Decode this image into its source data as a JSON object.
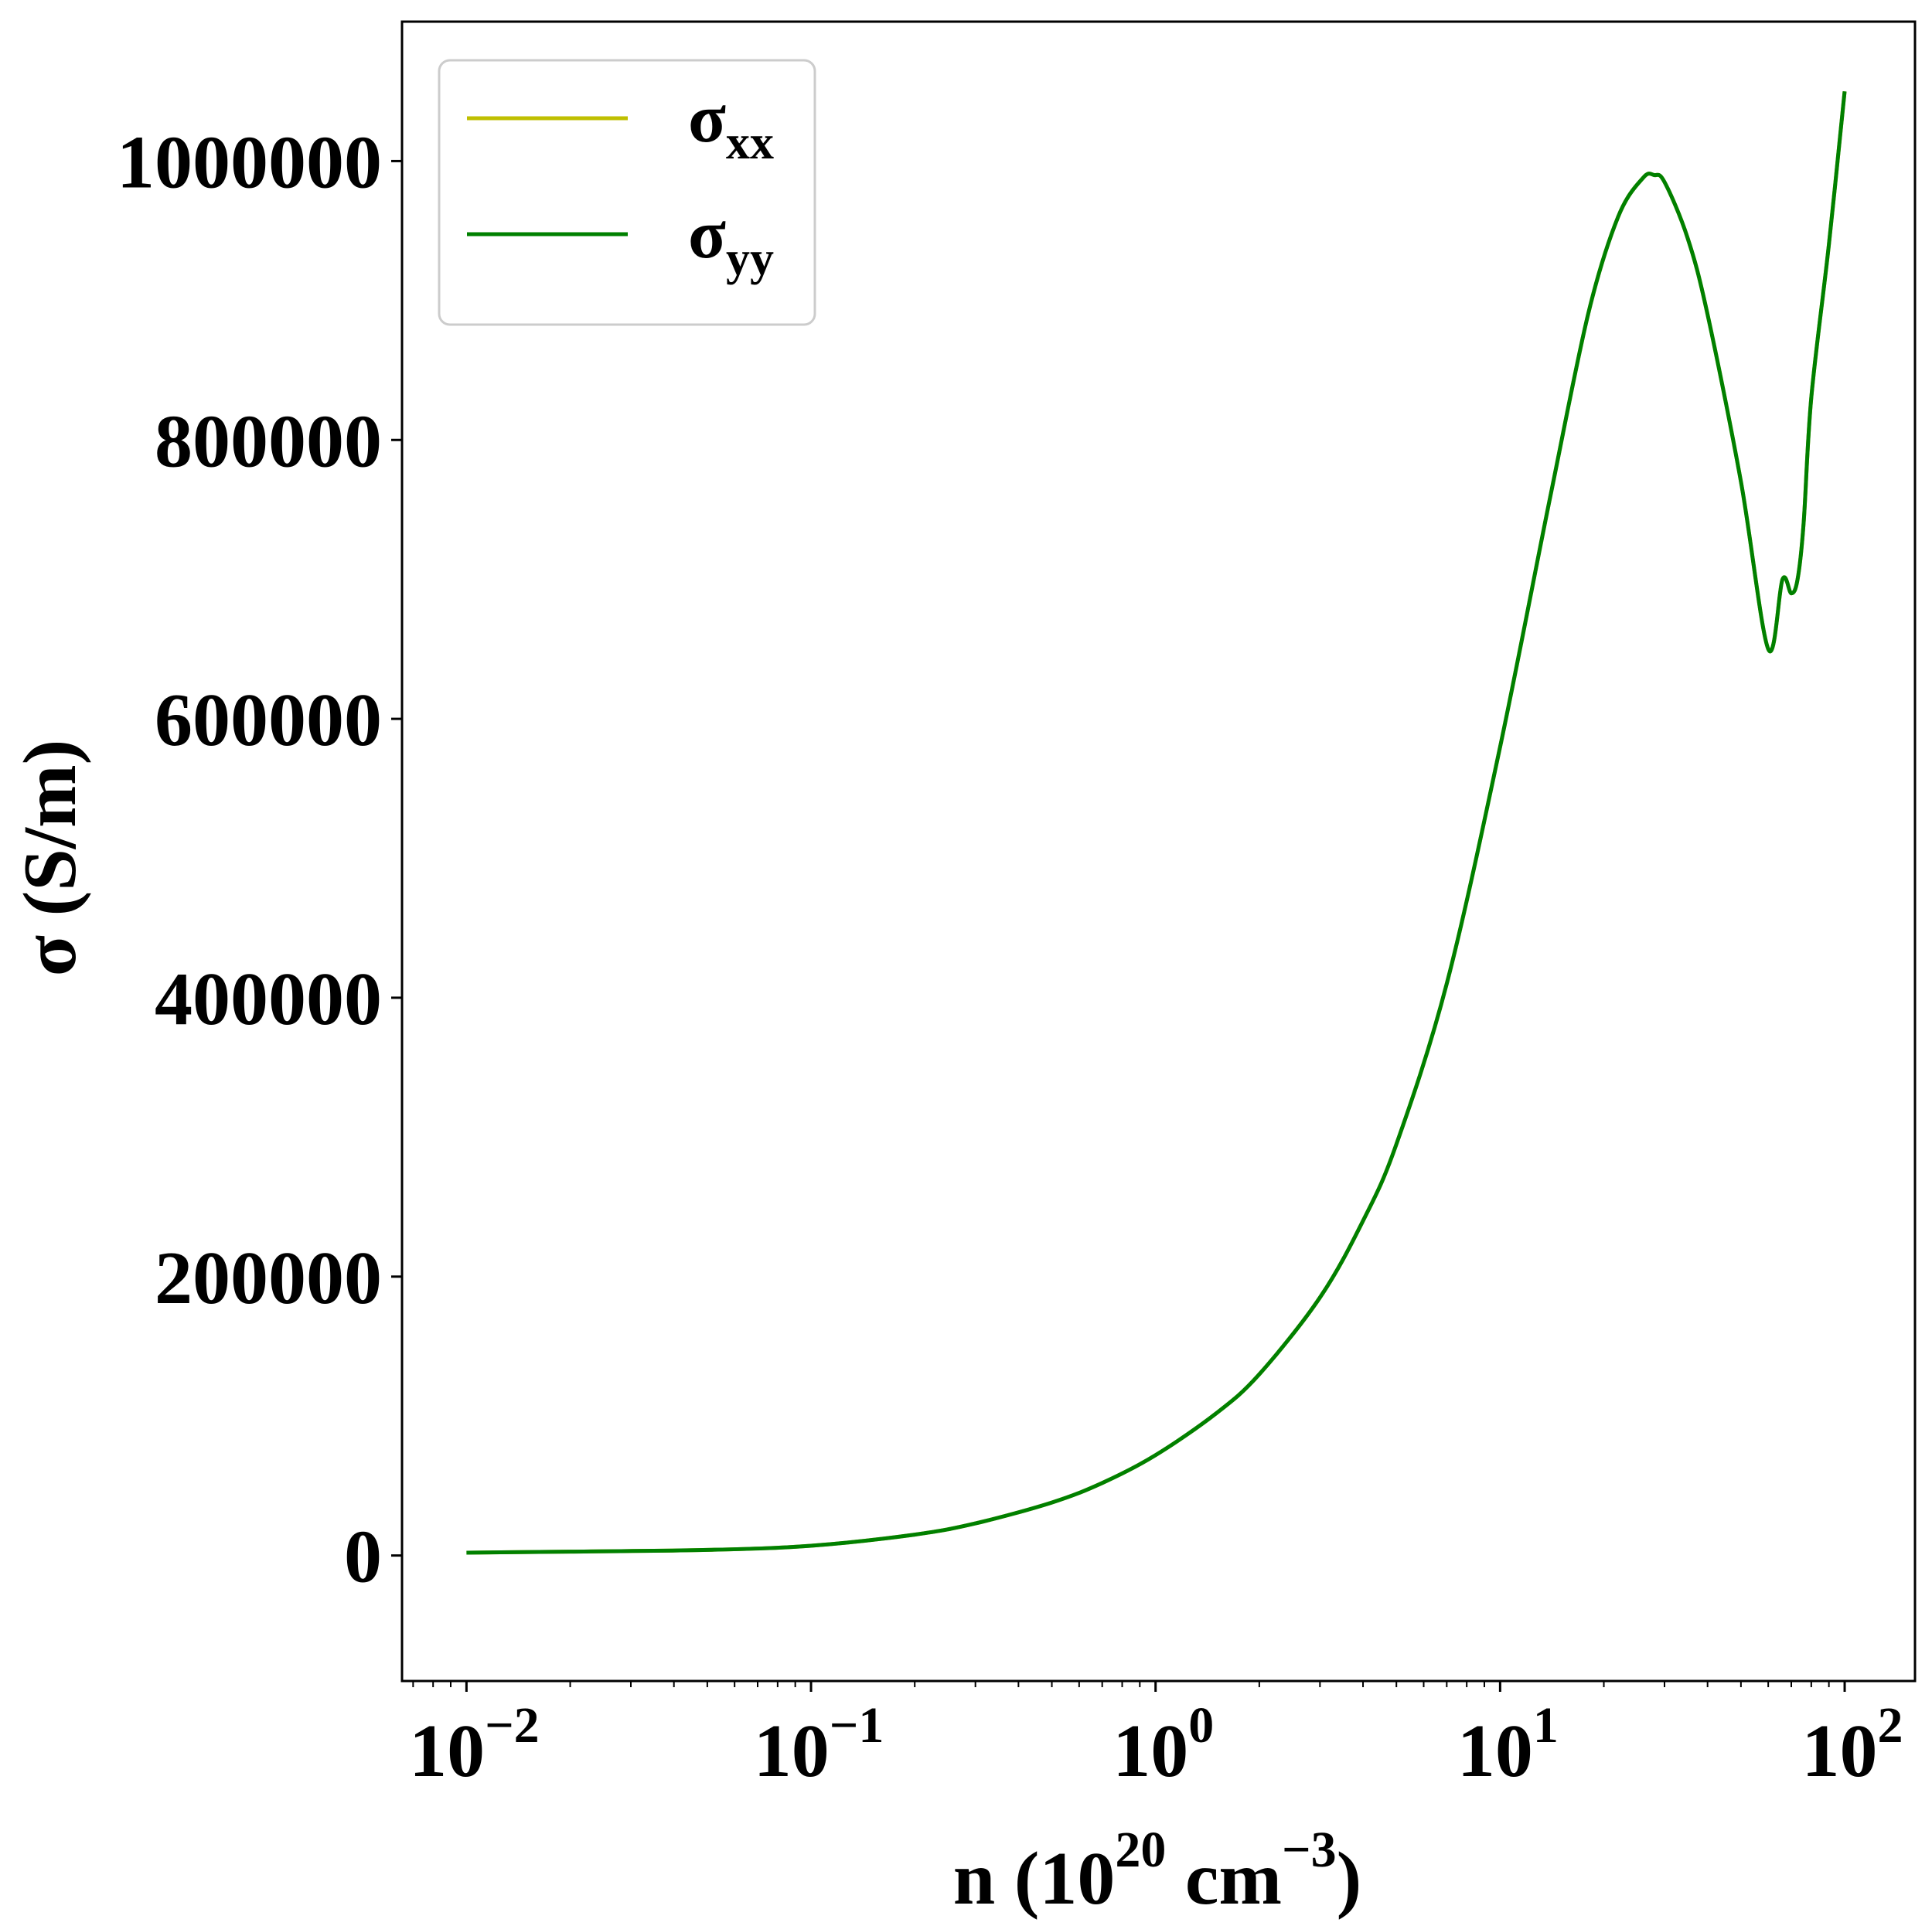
{
  "chart_data": {
    "type": "line",
    "xscale": "log",
    "xlim": [
      0.0065,
      160
    ],
    "ylim": [
      -90000,
      1100000
    ],
    "xlabel": {
      "main": "n (10",
      "sup1": "20",
      "mid": " cm",
      "sup2": "−3",
      "end": ")"
    },
    "ylabel": "σ (S/m)",
    "x_ticks": [
      {
        "base": "10",
        "exp": "−2"
      },
      {
        "base": "10",
        "exp": "−1"
      },
      {
        "base": "10",
        "exp": "0"
      },
      {
        "base": "10",
        "exp": "1"
      },
      {
        "base": "10",
        "exp": "2"
      }
    ],
    "x_tick_values": [
      0.01,
      0.1,
      1,
      10,
      100
    ],
    "y_ticks": [
      "0",
      "200000",
      "400000",
      "600000",
      "800000",
      "1000000"
    ],
    "y_tick_values": [
      0,
      200000,
      400000,
      600000,
      800000,
      1000000
    ],
    "legend": {
      "position": "upper-left"
    },
    "series": [
      {
        "name": "σxx",
        "label_main": "σ",
        "label_sub": "xx",
        "color": "#bfbf00",
        "x": [
          0.01,
          0.02,
          0.05,
          0.1,
          0.2,
          0.3,
          0.5,
          0.7,
          1.0,
          1.5,
          2.0,
          3.0,
          4.0,
          5.0,
          7.0,
          10.0,
          14.0,
          18.0,
          22.0,
          26.0,
          28.0,
          30.0,
          35.0,
          40.0,
          50.0,
          60.0,
          66.0,
          70.0,
          73.0,
          76.0,
          80.0,
          90.0,
          100.0
        ],
        "y": [
          2000,
          2800,
          4000,
          7000,
          15000,
          23000,
          38000,
          52000,
          72000,
          102000,
          130000,
          185000,
          240000,
          295000,
          410000,
          580000,
          760000,
          890000,
          960000,
          988000,
          990000,
          985000,
          945000,
          890000,
          770000,
          650000,
          700000,
          690000,
          700000,
          740000,
          830000,
          940000,
          1050000
        ]
      },
      {
        "name": "σyy",
        "label_main": "σ",
        "label_sub": "yy",
        "color": "#008000",
        "x": [
          0.01,
          0.02,
          0.05,
          0.1,
          0.2,
          0.3,
          0.5,
          0.7,
          1.0,
          1.5,
          2.0,
          3.0,
          4.0,
          5.0,
          7.0,
          10.0,
          14.0,
          18.0,
          22.0,
          26.0,
          28.0,
          30.0,
          35.0,
          40.0,
          50.0,
          60.0,
          66.0,
          70.0,
          73.0,
          76.0,
          80.0,
          90.0,
          100.0
        ],
        "y": [
          2000,
          2800,
          4000,
          7000,
          15000,
          23000,
          38000,
          52000,
          72000,
          102000,
          130000,
          185000,
          240000,
          295000,
          410000,
          580000,
          760000,
          890000,
          960000,
          988000,
          990000,
          985000,
          945000,
          890000,
          770000,
          650000,
          700000,
          690000,
          700000,
          740000,
          830000,
          940000,
          1050000
        ]
      }
    ]
  }
}
